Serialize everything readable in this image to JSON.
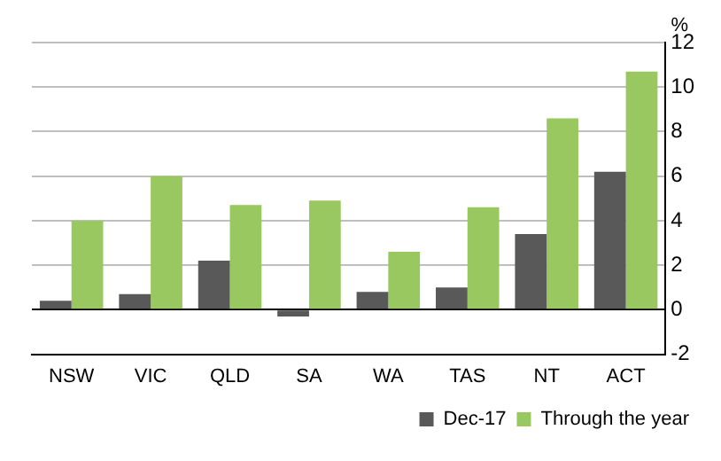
{
  "chart_data": {
    "type": "bar",
    "ylabel": "%",
    "categories": [
      "NSW",
      "VIC",
      "QLD",
      "SA",
      "WA",
      "TAS",
      "NT",
      "ACT"
    ],
    "series": [
      {
        "name": "Dec-17",
        "color": "#595959",
        "values": [
          0.4,
          0.7,
          2.2,
          -0.3,
          0.8,
          1.0,
          3.4,
          6.2
        ]
      },
      {
        "name": "Through the year",
        "color": "#99c861",
        "values": [
          4.0,
          6.0,
          4.7,
          4.9,
          2.6,
          4.6,
          8.6,
          10.7
        ]
      }
    ],
    "ylim": [
      -2,
      12
    ],
    "yticks": [
      -2,
      0,
      2,
      4,
      6,
      8,
      10,
      12
    ],
    "grid": "y",
    "legend": "bottom right"
  }
}
